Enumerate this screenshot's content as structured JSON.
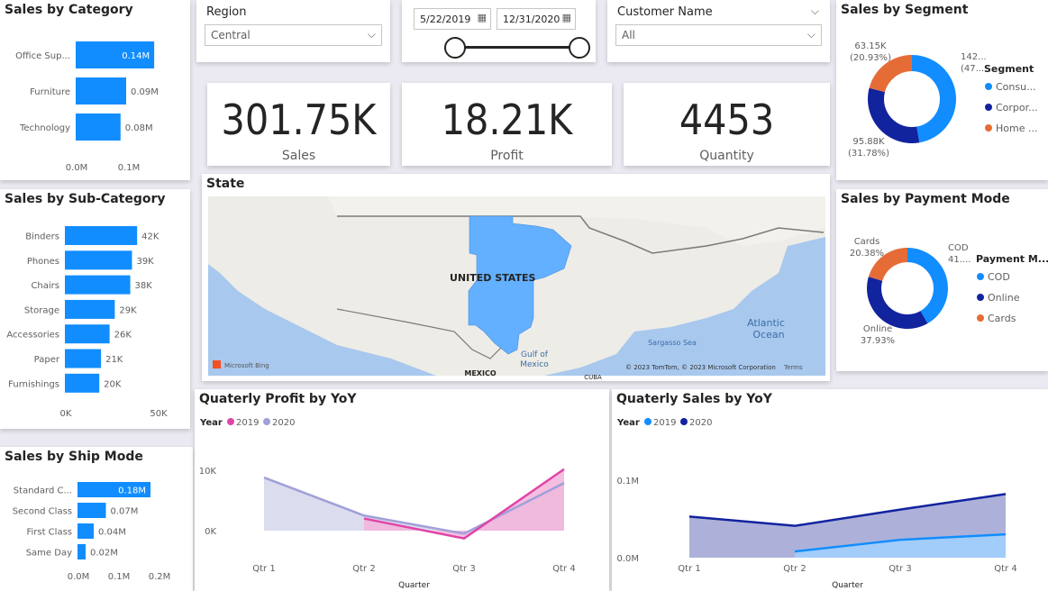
{
  "cards": {
    "category_title": "Sales by Category",
    "subcategory_title": "Sales by Sub-Category",
    "shipmode_title": "Sales by Ship Mode",
    "segment_title": "Sales by Segment",
    "payment_title": "Sales by Payment Mode",
    "state_title": "State",
    "profit_yoy_title": "Quaterly Profit by YoY",
    "sales_yoy_title": "Quaterly Sales by YoY"
  },
  "slicers": {
    "region": {
      "label": "Region",
      "value": "Central"
    },
    "dates": {
      "start": "5/22/2019",
      "end": "12/31/2020"
    },
    "customer": {
      "label": "Customer Name",
      "value": "All"
    }
  },
  "kpis": [
    {
      "value": "301.75K",
      "label": "Sales"
    },
    {
      "value": "18.21K",
      "label": "Profit"
    },
    {
      "value": "4453",
      "label": "Quantity"
    }
  ],
  "map": {
    "country_label": "UNITED STATES",
    "labels": [
      "Atlantic",
      "Ocean",
      "Gulf of",
      "Mexico",
      "Sargasso Sea",
      "MEXICO",
      "CUBA"
    ],
    "bing": "Microsoft Bing",
    "copyright": "© 2023 TomTom, © 2023 Microsoft Corporation",
    "terms": "Terms"
  },
  "chart_data": [
    {
      "id": "category",
      "type": "bar",
      "orientation": "horizontal",
      "categories": [
        "Office Sup...",
        "Furniture",
        "Technology"
      ],
      "values": [
        0.14,
        0.09,
        0.08
      ],
      "value_labels": [
        "0.14M",
        "0.09M",
        "0.08M"
      ],
      "xticks": [
        "0.0M",
        "0.1M"
      ],
      "xlim": [
        0,
        0.18
      ],
      "color": "#118DFF"
    },
    {
      "id": "subcategory",
      "type": "bar",
      "orientation": "horizontal",
      "categories": [
        "Binders",
        "Phones",
        "Chairs",
        "Storage",
        "Accessories",
        "Paper",
        "Furnishings"
      ],
      "values": [
        42,
        39,
        38,
        29,
        26,
        21,
        20
      ],
      "value_labels": [
        "42K",
        "39K",
        "38K",
        "29K",
        "26K",
        "21K",
        "20K"
      ],
      "xticks": [
        "0K",
        "50K"
      ],
      "xlim": [
        0,
        55
      ],
      "color": "#118DFF"
    },
    {
      "id": "shipmode",
      "type": "bar",
      "orientation": "horizontal",
      "categories": [
        "Standard C...",
        "Second Class",
        "First Class",
        "Same Day"
      ],
      "values": [
        0.18,
        0.07,
        0.04,
        0.02
      ],
      "value_labels": [
        "0.18M",
        "0.07M",
        "0.04M",
        "0.02M"
      ],
      "xticks": [
        "0.0M",
        "0.1M",
        "0.2M"
      ],
      "xlim": [
        0,
        0.2
      ],
      "color": "#118DFF"
    },
    {
      "id": "segment",
      "type": "pie",
      "donut": true,
      "legend_title": "Segment",
      "legend": [
        "Consu...",
        "Corpor...",
        "Home ..."
      ],
      "slices": [
        {
          "label": "Consumer",
          "value": 142.72,
          "text": [
            "142...",
            "(47..."
          ],
          "color": "#118DFF"
        },
        {
          "label": "Corporate",
          "value": 95.88,
          "text": [
            "95.88K",
            "(31.78%)"
          ],
          "color": "#12239E"
        },
        {
          "label": "Home Office",
          "value": 63.15,
          "text": [
            "63.15K",
            "(20.93%)"
          ],
          "color": "#E66C37"
        }
      ]
    },
    {
      "id": "payment",
      "type": "pie",
      "donut": true,
      "legend_title": "Payment M...",
      "legend": [
        "COD",
        "Online",
        "Cards"
      ],
      "slices": [
        {
          "label": "COD",
          "value": 41.69,
          "text": [
            "COD",
            "41...."
          ],
          "color": "#118DFF"
        },
        {
          "label": "Online",
          "value": 37.93,
          "text": [
            "Online",
            "37.93%"
          ],
          "color": "#12239E"
        },
        {
          "label": "Cards",
          "value": 20.38,
          "text": [
            "Cards",
            "20.38%"
          ],
          "color": "#E66C37"
        }
      ]
    },
    {
      "id": "profit_yoy",
      "type": "area",
      "legend_title": "Year",
      "x": [
        "Qtr 1",
        "Qtr 2",
        "Qtr 3",
        "Qtr 4"
      ],
      "xlabel": "Quarter",
      "yticks": [
        {
          "v": 0,
          "t": "0K"
        },
        {
          "v": 10,
          "t": "10K"
        }
      ],
      "ylim": [
        -1.5,
        13
      ],
      "series": [
        {
          "name": "2019",
          "color": "#E044A7",
          "fill": "#F3B3DB",
          "values": [
            null,
            2.0,
            -1.3,
            10.2
          ]
        },
        {
          "name": "2020",
          "color": "#A0A0D8",
          "fill": "#D6D6EC",
          "values": [
            8.8,
            2.5,
            -0.5,
            7.9
          ]
        }
      ]
    },
    {
      "id": "sales_yoy",
      "type": "area",
      "legend_title": "Year",
      "x": [
        "Qtr 1",
        "Qtr 2",
        "Qtr 3",
        "Qtr 4"
      ],
      "xlabel": "Quarter",
      "yticks": [
        {
          "v": 0,
          "t": "0.0M"
        },
        {
          "v": 0.1,
          "t": "0.1M"
        }
      ],
      "ylim": [
        0,
        0.13
      ],
      "series": [
        {
          "name": "2019",
          "color": "#118DFF",
          "fill": "#A0D1FF",
          "values": [
            null,
            0.008,
            0.023,
            0.03
          ]
        },
        {
          "name": "2020",
          "color": "#12239E",
          "fill": "#9FA3D3",
          "values": [
            0.053,
            0.041,
            0.062,
            0.082
          ]
        }
      ]
    }
  ]
}
